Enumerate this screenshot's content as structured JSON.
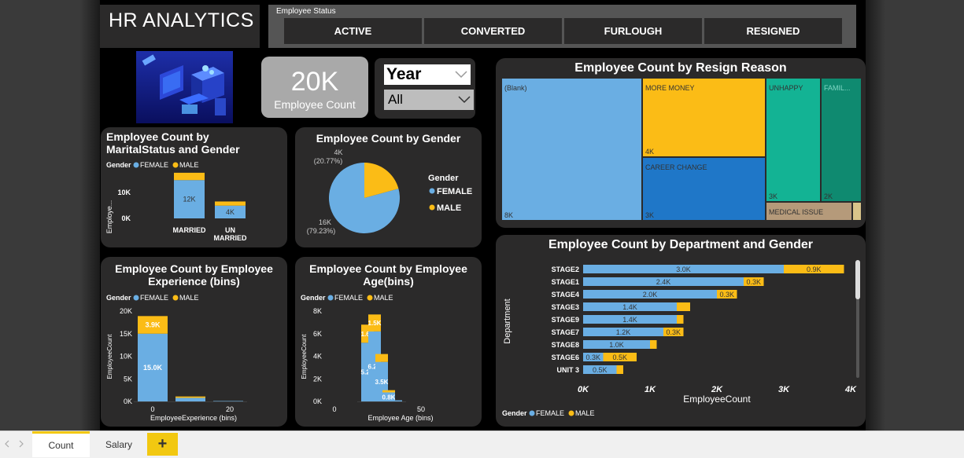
{
  "header": {
    "title": "HR ANALYTICS"
  },
  "status_slicer": {
    "label": "Employee Status",
    "options": [
      "ACTIVE",
      "CONVERTED",
      "FURLOUGH",
      "RESIGNED"
    ]
  },
  "kpi": {
    "value": "20K",
    "label": "Employee Count"
  },
  "year_slicer": {
    "title": "Year",
    "selected": "All"
  },
  "marital_chart": {
    "title_line1": "Employee Count by",
    "title_line2": "MaritalStatus and Gender"
  },
  "gender_pie": {
    "title": "Employee Count by Gender"
  },
  "experience_chart": {
    "title_line1": "Employee Count by Employee",
    "title_line2": "Experience (bins)"
  },
  "age_chart": {
    "title_line1": "Employee Count by Employee",
    "title_line2": "Age(bins)"
  },
  "treemap": {
    "title": "Employee Count by Resign Reason"
  },
  "department_chart": {
    "title": "Employee Count by Department and Gender"
  },
  "tabs": {
    "count": "Count",
    "salary": "Salary",
    "add": "+"
  },
  "colors": {
    "female": "#6aaee3",
    "male": "#fbbc16",
    "teal": "#13b394",
    "dark_teal": "#0f8a70",
    "blue": "#1f77c8",
    "tan": "#b59a7a",
    "card": "#2b2a2a"
  },
  "chart_data": [
    {
      "type": "bar",
      "id": "marital",
      "title": "Employee Count by MaritalStatus and Gender",
      "legend_title": "Gender",
      "categories": [
        "MARRIED",
        "UN MARRIED"
      ],
      "series": [
        {
          "name": "FEMALE",
          "values": [
            12000,
            4000
          ],
          "labels": [
            "12K",
            "4K"
          ]
        },
        {
          "name": "MALE",
          "values": [
            2300,
            1300
          ]
        }
      ],
      "ylabel": "Employe...",
      "yticks": [
        "10K",
        "0K"
      ],
      "ylim": [
        0,
        16000
      ]
    },
    {
      "type": "pie",
      "id": "gender",
      "title": "Employee Count by Gender",
      "legend_title": "Gender",
      "slices": [
        {
          "name": "FEMALE",
          "value": 79.23,
          "label": "16K",
          "pct": "(79.23%)"
        },
        {
          "name": "MALE",
          "value": 20.77,
          "label": "4K",
          "pct": "(20.77%)"
        }
      ]
    },
    {
      "type": "bar",
      "id": "experience",
      "title": "Employee Count by Employee Experience (bins)",
      "legend_title": "Gender",
      "x": [
        0,
        10,
        20
      ],
      "series": [
        {
          "name": "FEMALE",
          "values": [
            15000,
            800,
            100
          ],
          "labels": [
            "15.0K",
            "",
            ""
          ]
        },
        {
          "name": "MALE",
          "values": [
            3900,
            300,
            0
          ],
          "labels": [
            "3.9K",
            "",
            ""
          ]
        }
      ],
      "xlabel": "EmployeeExperience (bins)",
      "ylabel": "EmployeeCount",
      "yticks": [
        "20K",
        "15K",
        "10K",
        "5K",
        "0K"
      ],
      "xticks": [
        "0",
        "20"
      ],
      "ylim": [
        0,
        20000
      ]
    },
    {
      "type": "bar",
      "id": "age",
      "title": "Employee Count by Employee Age(bins)",
      "legend_title": "Gender",
      "x": [
        20,
        30,
        40,
        50,
        60
      ],
      "series": [
        {
          "name": "FEMALE",
          "values": [
            5200,
            6200,
            3500,
            800,
            100
          ],
          "labels": [
            "5.2K",
            "6.2K",
            "3.5K",
            "0.8K",
            ""
          ]
        },
        {
          "name": "MALE",
          "values": [
            1600,
            1500,
            700,
            200,
            0
          ],
          "labels": [
            "1.6K",
            "1.5K",
            "",
            "",
            ""
          ]
        }
      ],
      "xlabel": "Employee Age (bins)",
      "ylabel": "EmployeeCount",
      "yticks": [
        "8K",
        "6K",
        "4K",
        "2K",
        "0K"
      ],
      "xticks": [
        "0",
        "50"
      ],
      "ylim": [
        0,
        8000
      ]
    },
    {
      "type": "treemap",
      "id": "resign",
      "title": "Employee Count by Resign Reason",
      "items": [
        {
          "name": "(Blank)",
          "value": 8000,
          "label": "8K"
        },
        {
          "name": "MORE MONEY",
          "value": 4000,
          "label": "4K"
        },
        {
          "name": "CAREER CHANGE",
          "value": 3000,
          "label": "3K"
        },
        {
          "name": "UNHAPPY",
          "value": 3000,
          "label": "3K"
        },
        {
          "name": "FAMIL...",
          "value": 2000,
          "label": "2K"
        },
        {
          "name": "MEDICAL ISSUE",
          "value": 700,
          "label": ""
        }
      ]
    },
    {
      "type": "bar",
      "id": "department",
      "orientation": "horizontal",
      "title": "Employee Count by Department and Gender",
      "legend_title": "Gender",
      "categories": [
        "STAGE2",
        "STAGE1",
        "STAGE4",
        "STAGE3",
        "STAGE9",
        "STAGE7",
        "STAGE8",
        "STAGE6",
        "UNIT 3"
      ],
      "series": [
        {
          "name": "FEMALE",
          "values": [
            3000,
            2400,
            2000,
            1400,
            1400,
            1200,
            1000,
            300,
            500
          ],
          "labels": [
            "3.0K",
            "2.4K",
            "2.0K",
            "1.4K",
            "1.4K",
            "1.2K",
            "1.0K",
            "0.3K",
            "0.5K"
          ]
        },
        {
          "name": "MALE",
          "values": [
            900,
            300,
            300,
            200,
            100,
            300,
            100,
            500,
            100
          ],
          "labels": [
            "0.9K",
            "0.3K",
            "0.3K",
            "",
            "",
            "0.3K",
            "",
            "0.5K",
            ""
          ]
        }
      ],
      "xlabel": "EmployeeCount",
      "ylabel": "Department",
      "xticks": [
        "0K",
        "1K",
        "2K",
        "3K",
        "4K"
      ],
      "xlim": [
        0,
        4000
      ]
    }
  ]
}
